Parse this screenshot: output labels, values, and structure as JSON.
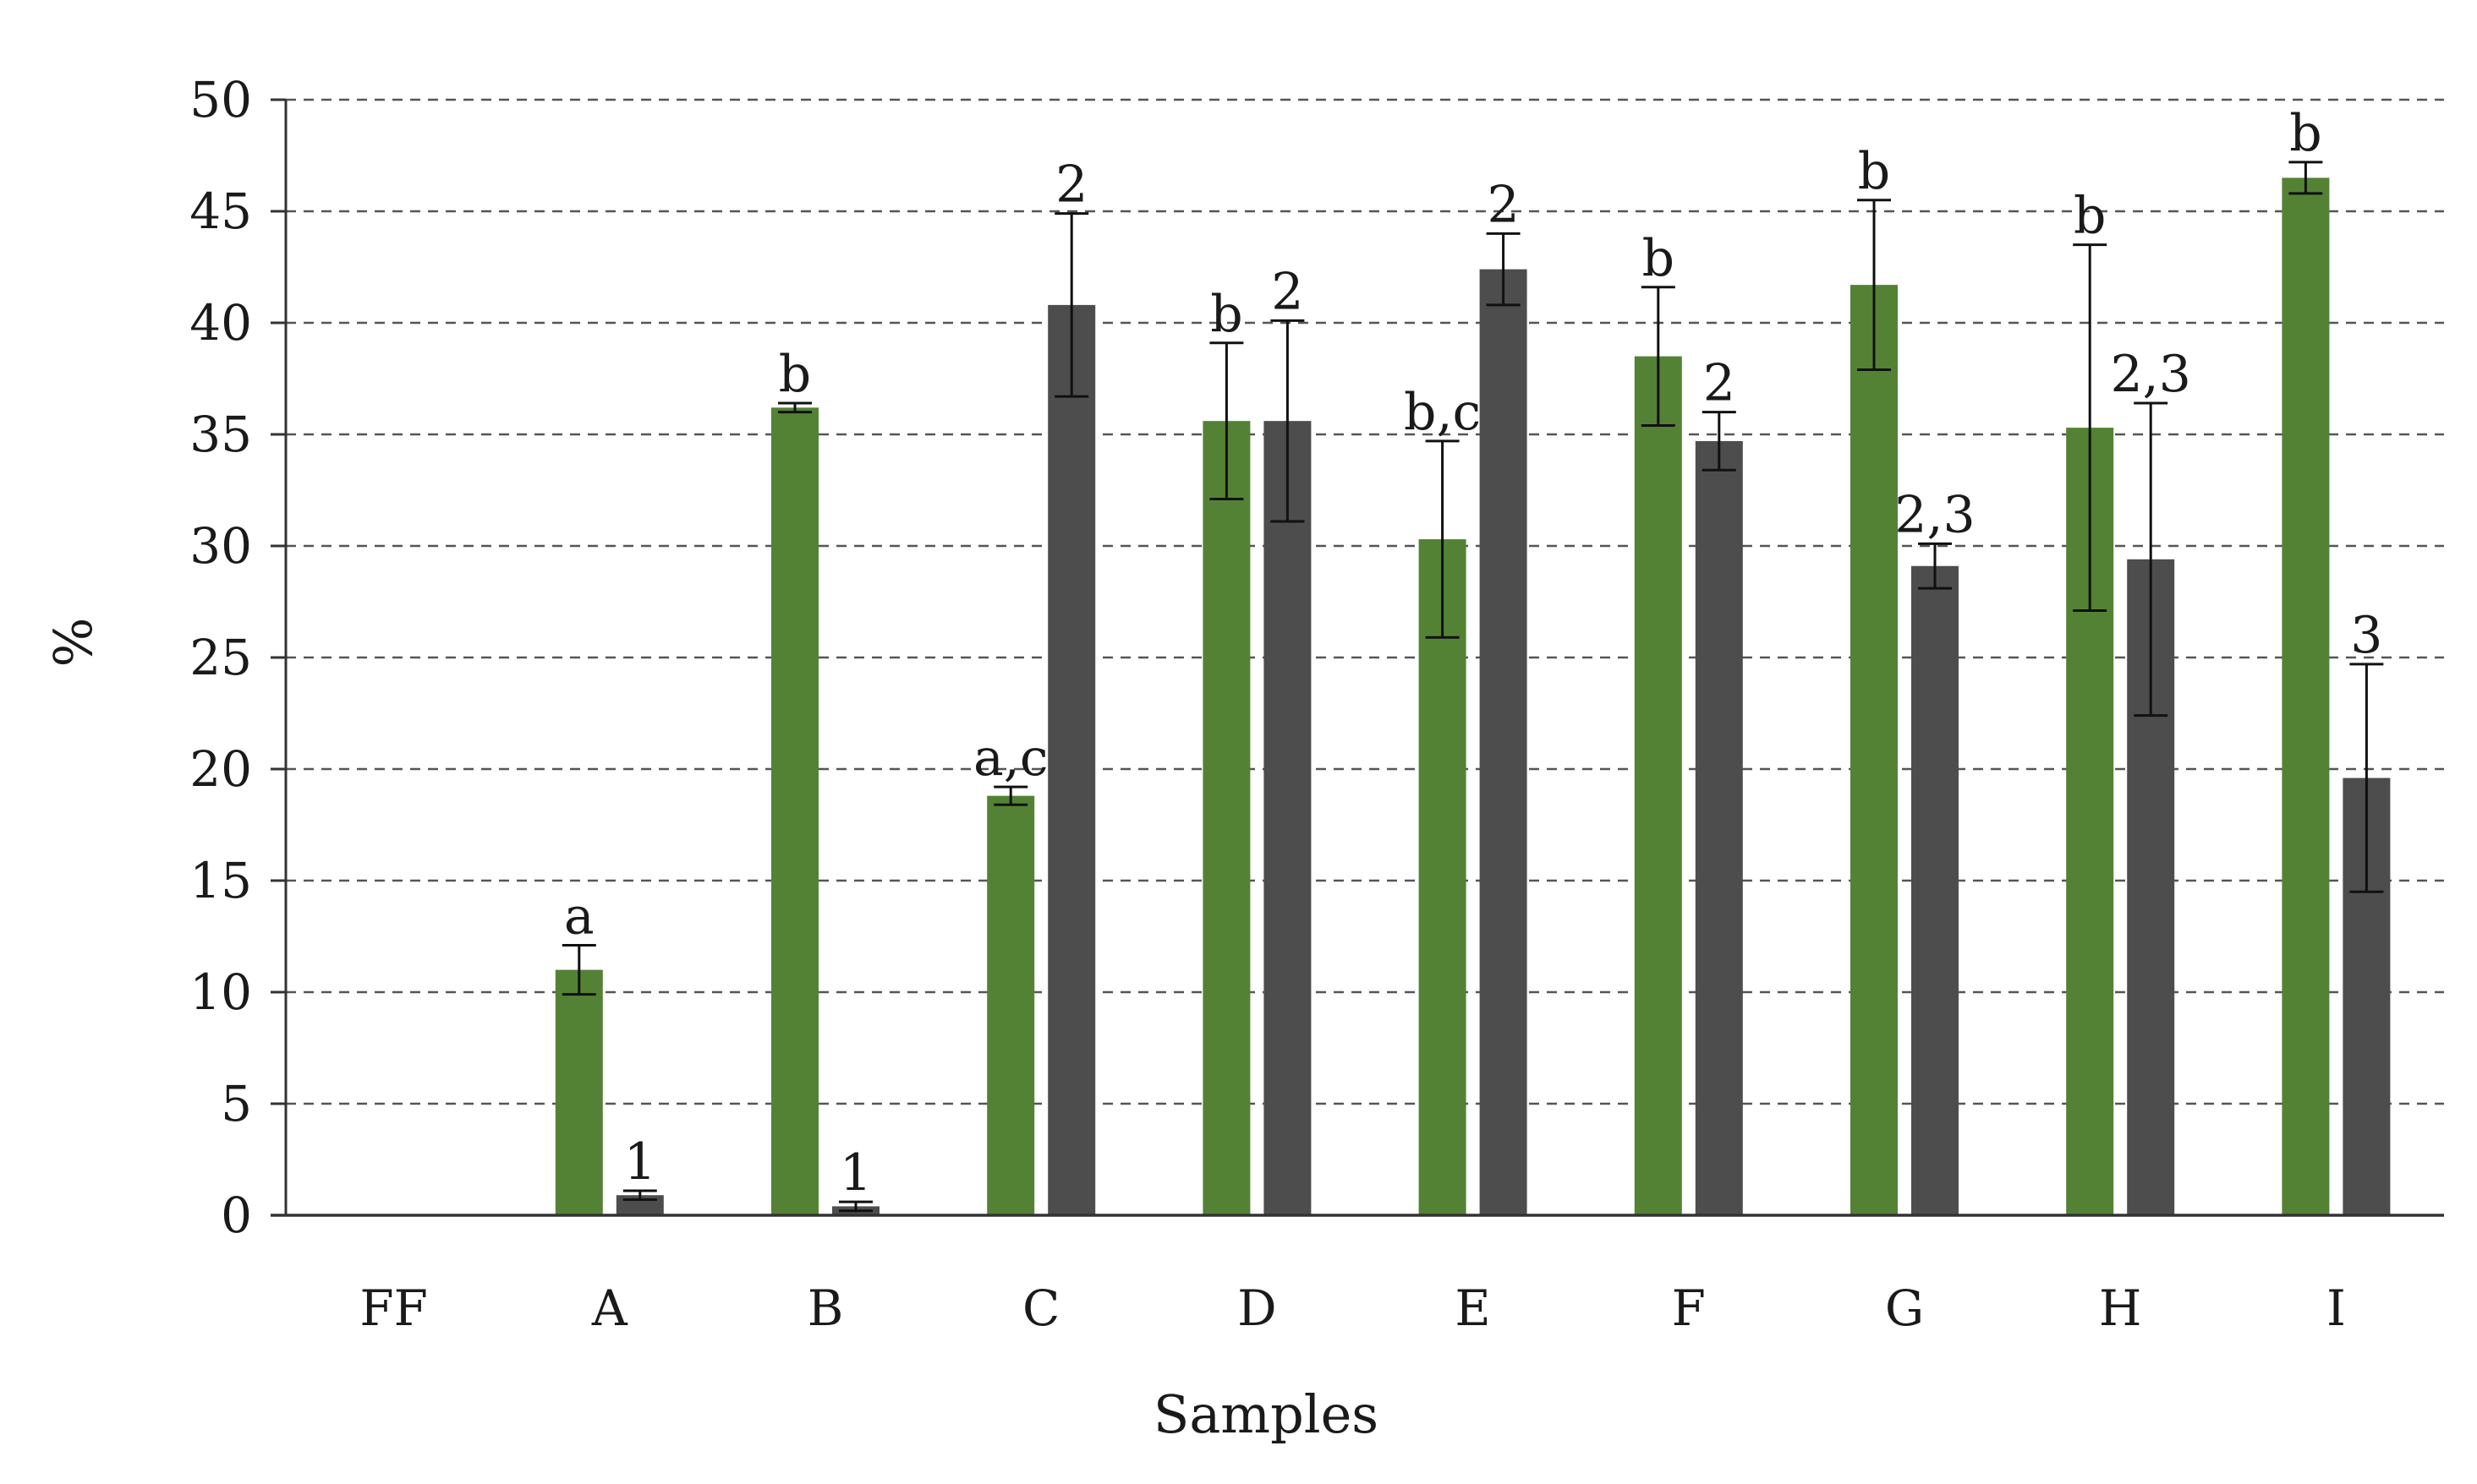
{
  "chart_data": {
    "type": "bar",
    "xlabel": "Samples",
    "ylabel": "%",
    "ylim": [
      0,
      50
    ],
    "yticks": [
      0,
      5,
      10,
      15,
      20,
      25,
      30,
      35,
      40,
      45,
      50
    ],
    "grid": "horizontal dashed",
    "categories": [
      "FF",
      "A",
      "B",
      "C",
      "D",
      "E",
      "F",
      "G",
      "H",
      "I"
    ],
    "series": [
      {
        "color": "#548235",
        "values": [
          0,
          11.0,
          36.2,
          18.8,
          35.6,
          30.3,
          38.5,
          41.7,
          35.3,
          46.5
        ],
        "errors": [
          0,
          1.1,
          0.2,
          0.4,
          3.5,
          4.4,
          3.1,
          3.8,
          8.2,
          0.7
        ],
        "labels": [
          "",
          "a",
          "b",
          "a,c",
          "b",
          "b,c",
          "b",
          "b",
          "b",
          "b"
        ]
      },
      {
        "color": "#4d4d4d",
        "values": [
          0,
          0.9,
          0.4,
          40.8,
          35.6,
          42.4,
          34.7,
          29.1,
          29.4,
          19.6
        ],
        "errors": [
          0,
          0.2,
          0.2,
          4.1,
          4.5,
          1.6,
          1.3,
          1.0,
          7.0,
          5.1
        ],
        "labels": [
          "",
          "1",
          "1",
          "2",
          "2",
          "2",
          "2",
          "2,3",
          "2,3",
          "3"
        ]
      }
    ]
  }
}
